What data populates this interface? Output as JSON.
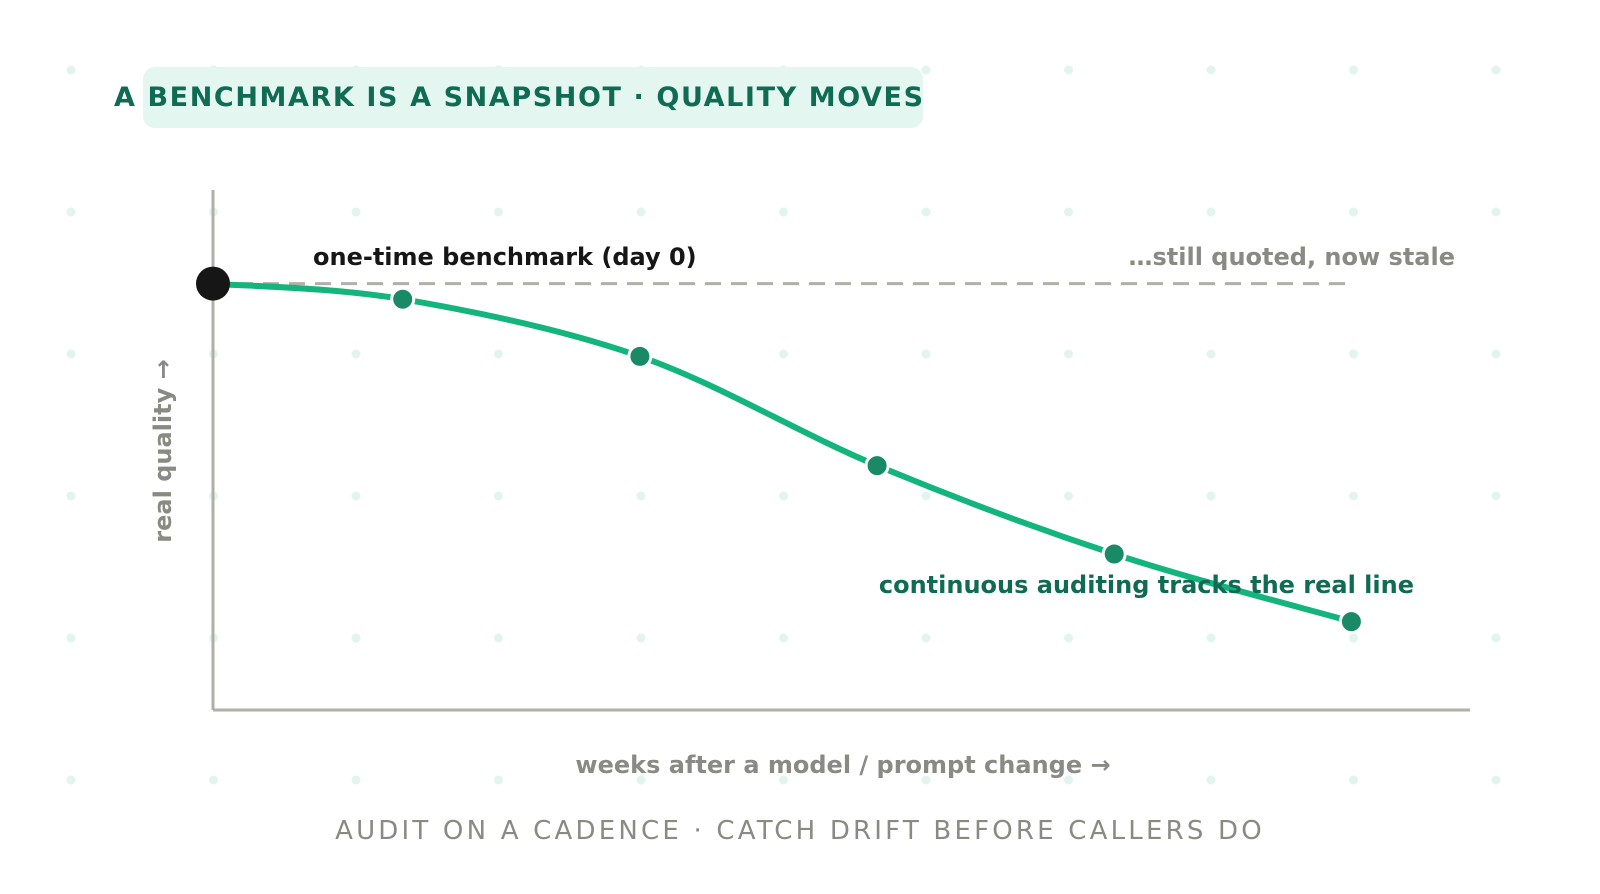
{
  "title": "A BENCHMARK IS A SNAPSHOT · QUALITY MOVES",
  "footer": "AUDIT ON A CADENCE · CATCH DRIFT BEFORE CALLERS DO",
  "colors": {
    "title_text": "#0f6b53",
    "title_bg": "#e3f6ef",
    "curve": "#14b57c",
    "audit_point": "#1a8a66",
    "benchmark_point": "#161616",
    "baseline_dash": "#b0b0aa",
    "axis": "#b0b0a6",
    "muted_text": "#8a8a84",
    "grid_dot": "#e2f4ee"
  },
  "chart_data": {
    "type": "line",
    "title": "",
    "xlabel": "weeks after a model / prompt change →",
    "ylabel": "real quality →",
    "xlim": [
      0,
      5.3
    ],
    "ylim": [
      0,
      1
    ],
    "series": [
      {
        "role": "real-quality",
        "x": [
          0,
          0.8,
          1.8,
          2.8,
          3.8,
          4.8
        ],
        "y": [
          0.82,
          0.79,
          0.68,
          0.47,
          0.3,
          0.17
        ]
      },
      {
        "role": "one-time-benchmark",
        "x": [
          0,
          4.8
        ],
        "y": [
          0.82,
          0.82
        ]
      }
    ],
    "benchmark_point": {
      "x": 0,
      "y": 0.82
    },
    "annotations": {
      "benchmark": "one-time benchmark (day 0)",
      "stale": "…still quoted, now stale",
      "auditing": "continuous auditing tracks the real line"
    }
  }
}
